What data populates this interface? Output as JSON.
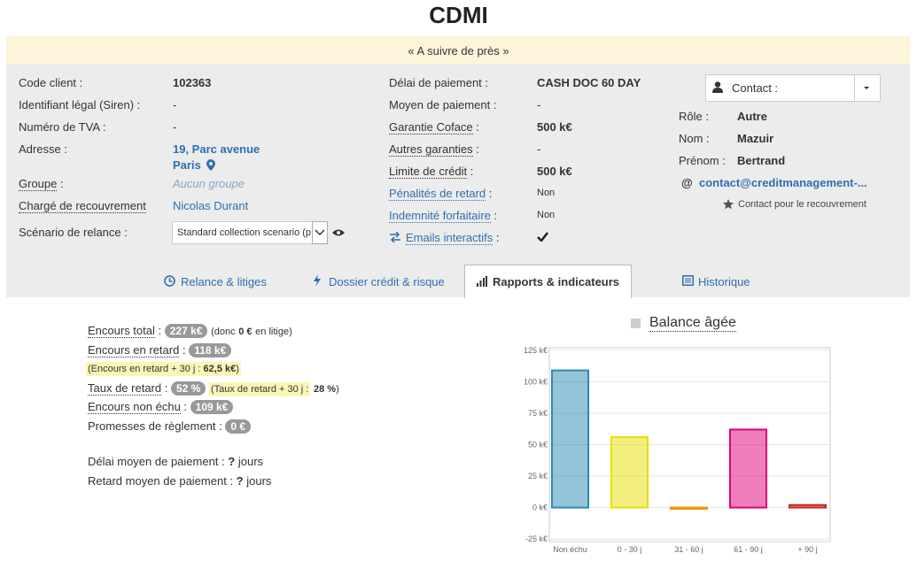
{
  "header": {
    "title": "CDMI",
    "banner": "« A suivre de près »"
  },
  "client_info": [
    {
      "label": "Code client :",
      "value": "102363"
    },
    {
      "label": "Identifiant légal (Siren) :",
      "value": "-"
    },
    {
      "label": "Numéro de TVA :",
      "value": "-"
    },
    {
      "label": "Adresse :",
      "value": "19, Parc avenue",
      "value2": "Paris"
    },
    {
      "label": "Groupe",
      "sep": ":",
      "value": "Aucun groupe"
    },
    {
      "label": "Chargé de recouvrement",
      "value": "Nicolas Durant"
    },
    {
      "label": "Scénario de relance :",
      "value": "Standard collection scenario (p"
    }
  ],
  "payment_info": [
    {
      "label": "Délai de paiement :",
      "value": "CASH DOC 60 DAY"
    },
    {
      "label": "Moyen de paiement :",
      "value": "-"
    },
    {
      "label": "Garantie Coface",
      "sep": ":",
      "value": "500 k€"
    },
    {
      "label": "Autres garanties",
      "sep": ":",
      "value": "-"
    },
    {
      "label": "Limite de crédit",
      "sep": ":",
      "value": "500 k€"
    },
    {
      "label": "Pénalités de retard",
      "sep": ":",
      "value": "Non"
    },
    {
      "label": "Indemnité forfaitaire",
      "sep": ":",
      "value": "Non"
    },
    {
      "label": "Emails interactifs",
      "sep": ":"
    }
  ],
  "contact": {
    "dropdown": "Contact :",
    "fields": [
      {
        "label": "Rôle :",
        "value": "Autre"
      },
      {
        "label": "Nom :",
        "value": "Mazuir"
      },
      {
        "label": "Prénom :",
        "value": "Bertrand"
      }
    ],
    "email_prefix": "@",
    "email": "contact@creditmanagement-...",
    "note": "Contact pour le recouvrement"
  },
  "tabs": [
    "Relance & litiges",
    "Dossier crédit & risque",
    "Rapports & indicateurs",
    "Historique"
  ],
  "stats": {
    "encours_total": {
      "label": "Encours total",
      "sep": ":",
      "badge": "227 k€",
      "note_a": "(donc",
      "note_b": "0 €",
      "note_c": "en litige)"
    },
    "encours_retard": {
      "label": "Encours en retard",
      "sep": ":",
      "badge": "118 k€"
    },
    "encours_retard_30": {
      "label": "(Encours en retard + 30 j :",
      "value": "62,5 k€",
      "end": ")"
    },
    "taux_retard": {
      "label": "Taux de retard",
      "sep": ":",
      "badge": "52 %",
      "note_a": "(Taux de retard + 30 j",
      "note_sep": ":",
      "note_b": "28 %",
      "note_c": ")"
    },
    "encours_non_echu": {
      "label": "Encours non échu",
      "sep": ":",
      "badge": "109 k€"
    },
    "promesses": {
      "label": "Promesses de règlement :",
      "badge": "0 €"
    },
    "delai_moyen": {
      "label": "Délai moyen de paiement :",
      "value": "?",
      "unit": "jours"
    },
    "retard_moyen": {
      "label": "Retard moyen de paiement :",
      "value": "?",
      "unit": "jours"
    }
  },
  "chart_data": {
    "type": "bar",
    "title": "Balance âgée",
    "categories": [
      "Non échu",
      "0 - 30 j",
      "31 - 60 j",
      "61 - 90 j",
      "+ 90 j"
    ],
    "values": [
      109,
      56,
      -1,
      62,
      2
    ],
    "colors": [
      "#2a8ab5",
      "#e8e000",
      "#f0950a",
      "#e0007a",
      "#c8261a"
    ],
    "ylim": [
      -27,
      127
    ],
    "yticks": [
      {
        "value": -25,
        "label": "-25 k€"
      },
      {
        "value": 0,
        "label": "0 k€"
      },
      {
        "value": 25,
        "label": "25 k€"
      },
      {
        "value": 50,
        "label": "50 k€"
      },
      {
        "value": 75,
        "label": "75 k€"
      },
      {
        "value": 100,
        "label": "100 k€"
      },
      {
        "value": 125,
        "label": "125 k€"
      }
    ],
    "grid": true
  }
}
